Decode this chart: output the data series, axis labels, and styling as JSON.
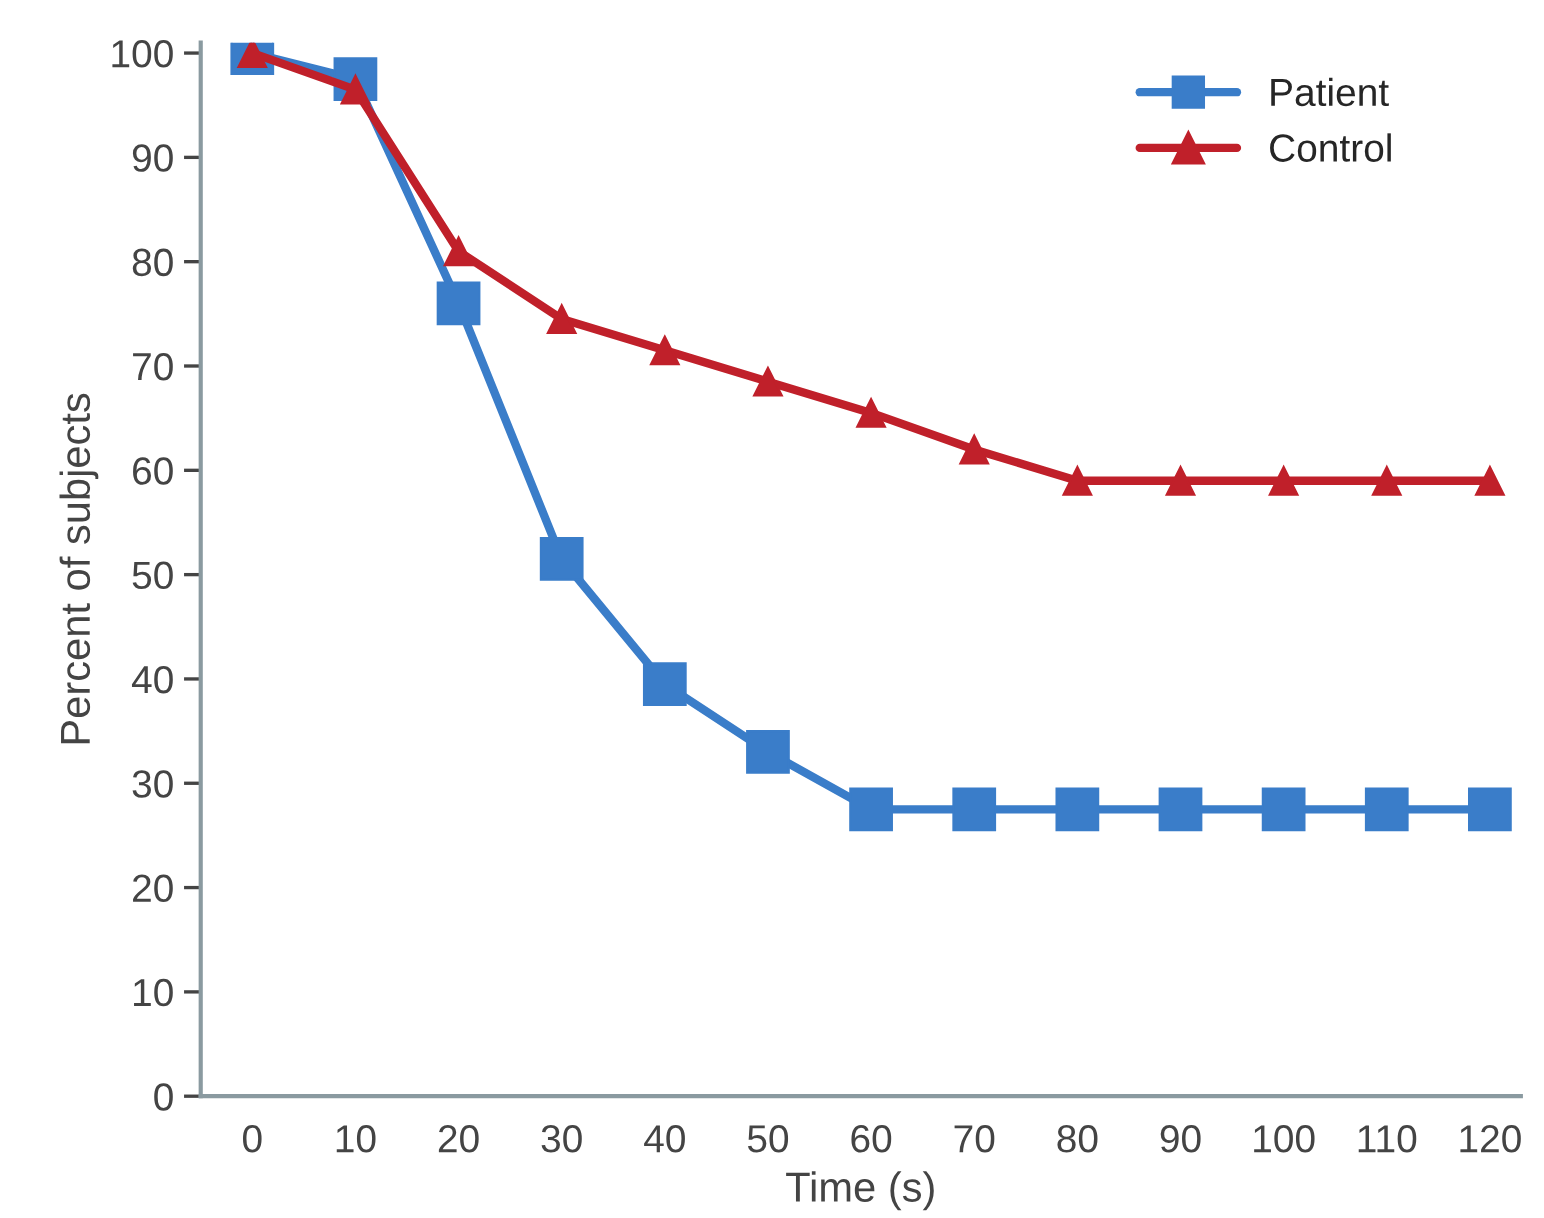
{
  "chart_data": {
    "type": "line",
    "xlabel": "Time (s)",
    "ylabel": "Percent of subjects",
    "x": [
      0,
      10,
      20,
      30,
      40,
      50,
      60,
      70,
      80,
      90,
      100,
      110,
      120
    ],
    "series": [
      {
        "name": "Patient",
        "color": "#3a7dc9",
        "marker": "square",
        "values": [
          100,
          97.5,
          76,
          51.5,
          39.5,
          33,
          27.5,
          27.5,
          27.5,
          27.5,
          27.5,
          27.5,
          27.5
        ]
      },
      {
        "name": "Control",
        "color": "#c0202a",
        "marker": "triangle",
        "values": [
          100,
          96.5,
          81,
          74.5,
          71.5,
          68.5,
          65.5,
          62,
          59,
          59,
          59,
          59,
          59
        ]
      }
    ],
    "xlim": [
      -5,
      123
    ],
    "xticks": [
      0,
      10,
      20,
      30,
      40,
      50,
      60,
      70,
      80,
      90,
      100,
      110,
      120
    ],
    "ylim": [
      0,
      101
    ],
    "yticks": [
      0,
      10,
      20,
      30,
      40,
      50,
      60,
      70,
      80,
      90,
      100
    ],
    "grid": false,
    "legend": "top right",
    "line_style": "solid"
  }
}
